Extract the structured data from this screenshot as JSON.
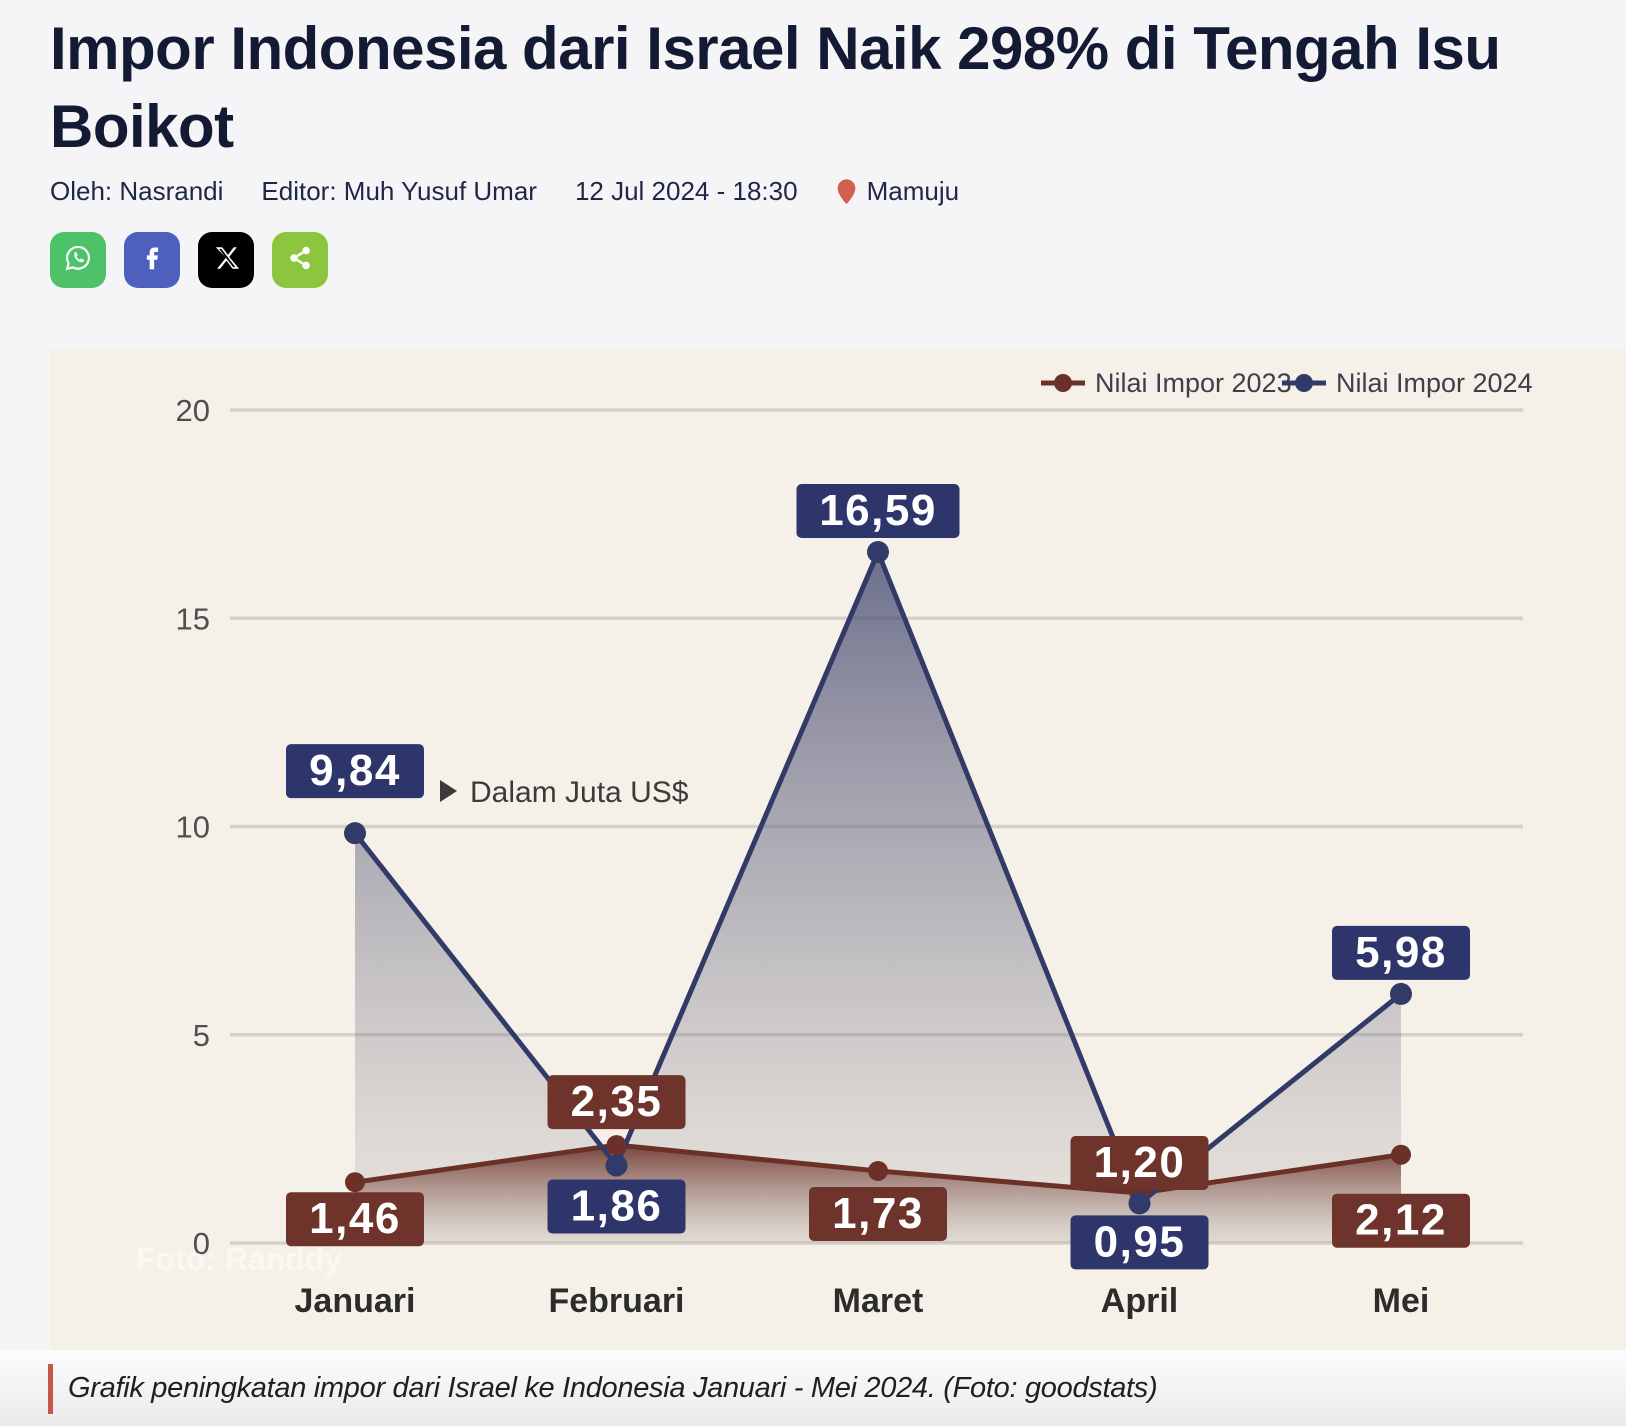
{
  "page": {
    "background": "#f5f4f6"
  },
  "article": {
    "title": "Impor Indonesia dari Israel Naik 298% di Tengah Isu Boikot",
    "author": "Oleh: Nasrandi",
    "editor": "Editor: Muh Yusuf Umar",
    "published": "12 Jul 2024 - 18:30",
    "location": "Mamuju",
    "caption": "Grafik peningkatan impor dari Israel ke Indonesia Januari - Mei 2024. (Foto: goodstats)",
    "share_buttons": [
      {
        "name": "whatsapp",
        "color": "#4EC268"
      },
      {
        "name": "facebook",
        "color": "#4D60BE"
      },
      {
        "name": "x",
        "color": "#000000"
      },
      {
        "name": "share",
        "color": "#8CC63E"
      }
    ],
    "location_pin_color": "#D15F50",
    "caption_bar_color": "#C2574A"
  },
  "chart_data": {
    "type": "line",
    "categories": [
      "Januari",
      "Februari",
      "Maret",
      "April",
      "Mei"
    ],
    "series": [
      {
        "name": "Nilai Impor 2023",
        "color": "#6B3027",
        "box_color": "#6E332A",
        "values": [
          1.46,
          2.35,
          1.73,
          1.2,
          2.12
        ],
        "labels": [
          "1,46",
          "2,35",
          "1,73",
          "1,20",
          "2,12"
        ]
      },
      {
        "name": "Nilai Impor 2024",
        "color": "#323A68",
        "box_color": "#2E356B",
        "values": [
          9.84,
          1.86,
          16.59,
          0.95,
          5.98
        ],
        "labels": [
          "9,84",
          "1,86",
          "16,59",
          "0,95",
          "5,98"
        ]
      }
    ],
    "unit_annotation": "Dalam Juta US$",
    "y_ticks": [
      0,
      5,
      10,
      15,
      20
    ],
    "ylim": [
      0,
      20
    ],
    "grid": true,
    "legend_position": "top-right",
    "watermark": "Foto: Randdy",
    "background": "#F6F1E8",
    "grid_color": "#d5d1ca",
    "tick_label_color": "#4f4f4f",
    "month_label_color": "#2c2c2c",
    "legend_text_color": "#3b4049"
  }
}
